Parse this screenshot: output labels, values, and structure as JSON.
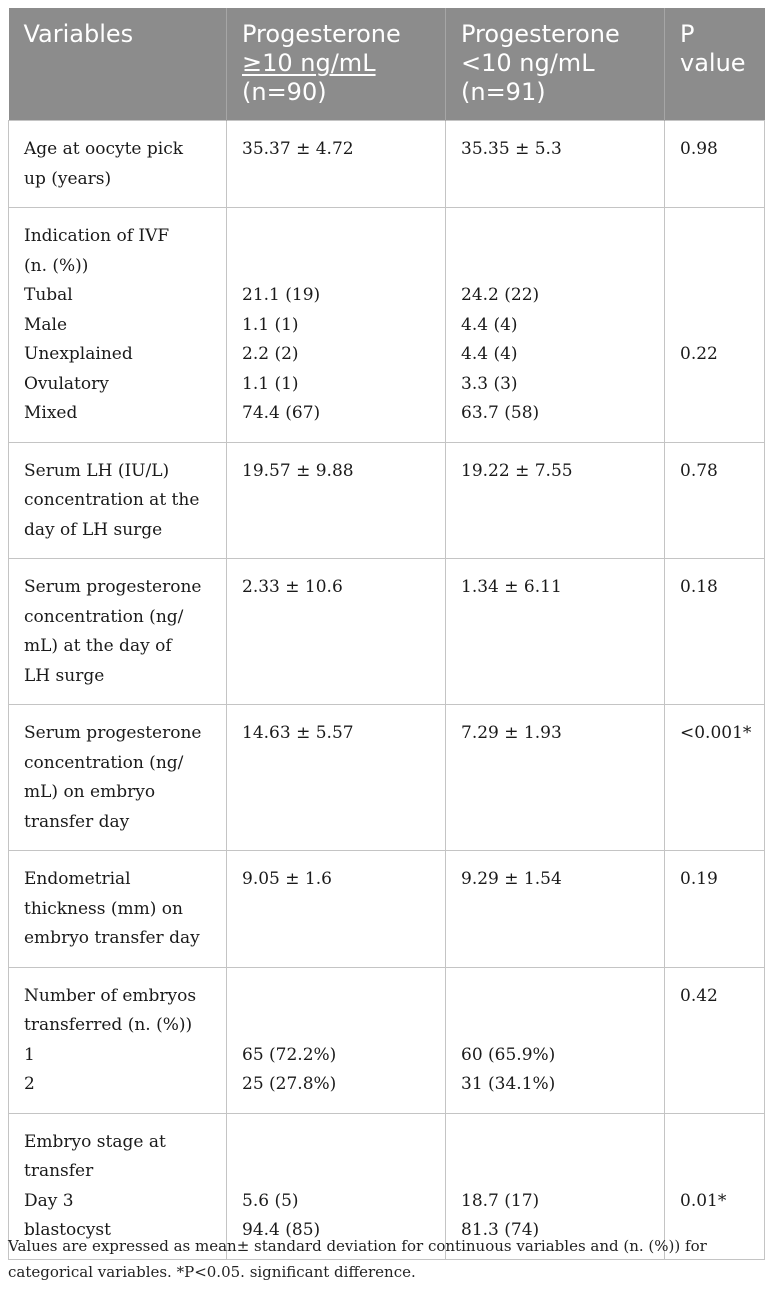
{
  "table": {
    "headers": {
      "variables": "Variables",
      "col_high": [
        "Progesterone",
        "≥10 ng/mL",
        "(n=90)"
      ],
      "col_low": [
        "Progesterone",
        "<10 ng/mL",
        "(n=91)"
      ],
      "p_value": [
        "P",
        "value"
      ]
    },
    "rows": [
      {
        "variable": [
          "Age at oocyte pick",
          "up (years)"
        ],
        "high": [
          "35.37 ± 4.72"
        ],
        "low": [
          "35.35 ± 5.3"
        ],
        "p": [
          "0.98"
        ]
      },
      {
        "variable": [
          "Indication of IVF",
          "(n. (%))",
          "Tubal",
          "Male",
          "Unexplained",
          "Ovulatory",
          "Mixed"
        ],
        "high": [
          "21.1 (19)",
          "1.1 (1)",
          "2.2 (2)",
          "1.1 (1)",
          "74.4 (67)"
        ],
        "low": [
          "24.2 (22)",
          "4.4 (4)",
          "4.4 (4)",
          "3.3 (3)",
          "63.7 (58)"
        ],
        "p": [
          "0.22"
        ]
      },
      {
        "variable": [
          "Serum LH (IU/L)",
          "concentration at the",
          "day of LH surge"
        ],
        "high": [
          "19.57 ± 9.88"
        ],
        "low": [
          "19.22 ± 7.55"
        ],
        "p": [
          "0.78"
        ]
      },
      {
        "variable": [
          "Serum progesterone",
          "concentration (ng/",
          "mL) at the day of",
          "LH surge"
        ],
        "high": [
          "2.33 ± 10.6"
        ],
        "low": [
          "1.34 ± 6.11"
        ],
        "p": [
          "0.18"
        ]
      },
      {
        "variable": [
          "Serum progesterone",
          "concentration (ng/",
          "mL) on embryo",
          "transfer day"
        ],
        "high": [
          "14.63 ± 5.57"
        ],
        "low": [
          "7.29 ± 1.93"
        ],
        "p": [
          "<0.001*"
        ]
      },
      {
        "variable": [
          "Endometrial",
          "thickness (mm) on",
          "embryo transfer day"
        ],
        "high": [
          "9.05 ± 1.6"
        ],
        "low": [
          "9.29 ± 1.54"
        ],
        "p": [
          "0.19"
        ]
      },
      {
        "variable": [
          "Number of embryos",
          "transferred (n. (%))",
          "1",
          "2"
        ],
        "high": [
          "65 (72.2%)",
          "25 (27.8%)"
        ],
        "low": [
          "60 (65.9%)",
          "31 (34.1%)"
        ],
        "p": [
          "0.42"
        ]
      },
      {
        "variable": [
          "Embryo stage at",
          "transfer",
          "Day 3",
          "blastocyst"
        ],
        "high": [
          "5.6 (5)",
          "94.4 (85)"
        ],
        "low": [
          "18.7 (17)",
          "81.3 (74)"
        ],
        "p": [
          "0.01*"
        ]
      }
    ]
  },
  "footnote": [
    "Values are expressed as mean± standard deviation for continuous variables and (n. (%)) for",
    "categorical variables. *P<0.05. significant difference."
  ]
}
